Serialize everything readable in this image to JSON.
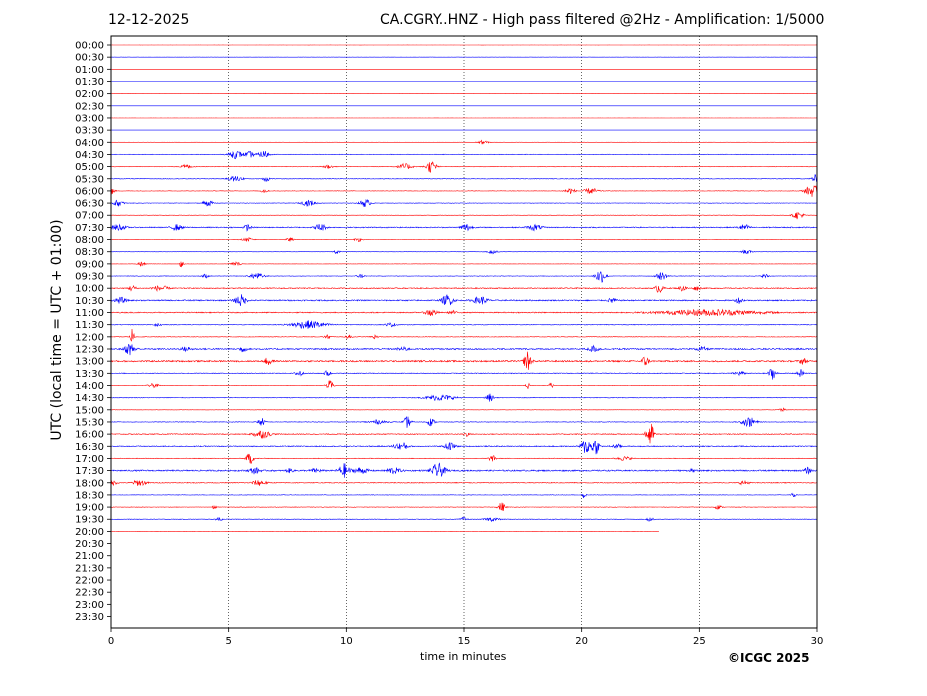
{
  "header": {
    "date": "12-12-2025",
    "title": "CA.CGRY..HNZ - High pass filtered @2Hz - Amplification: 1/5000"
  },
  "footer": {
    "copyright": "©ICGC 2025"
  },
  "chart_data": {
    "type": "line",
    "title": "CA.CGRY..HNZ - High pass filtered @2Hz - Amplification: 1/5000",
    "xlabel": "time in minutes",
    "ylabel": "UTC (local time = UTC + 01:00)",
    "xlim": [
      0,
      30
    ],
    "x_ticks": [
      0,
      5,
      10,
      15,
      20,
      25,
      30
    ],
    "x_tick_labels": [
      "0",
      "5",
      "10",
      "15",
      "20",
      "25",
      "30"
    ],
    "grid": "vertical dotted at 5-minute intervals",
    "row_labels": [
      "00:00",
      "00:30",
      "01:00",
      "01:30",
      "02:00",
      "02:30",
      "03:00",
      "03:30",
      "04:00",
      "04:30",
      "05:00",
      "05:30",
      "06:00",
      "06:30",
      "07:00",
      "07:30",
      "08:00",
      "08:30",
      "09:00",
      "09:30",
      "10:00",
      "10:30",
      "11:00",
      "11:30",
      "12:00",
      "12:30",
      "13:00",
      "13:30",
      "14:00",
      "14:30",
      "15:00",
      "15:30",
      "16:00",
      "16:30",
      "17:00",
      "17:30",
      "18:00",
      "18:30",
      "19:00",
      "19:30",
      "20:00",
      "20:30",
      "21:00",
      "21:30",
      "22:00",
      "22:30",
      "23:00",
      "23:30"
    ],
    "colors": {
      "even_rows": "#ff0000",
      "odd_rows": "#0000ff"
    },
    "data_end": {
      "row": "20:00",
      "minute": 23.3
    },
    "rows": [
      {
        "label": "00:00",
        "noise": 0.1,
        "events": []
      },
      {
        "label": "00:30",
        "noise": 0.05,
        "events": []
      },
      {
        "label": "01:00",
        "noise": 0.05,
        "events": []
      },
      {
        "label": "01:30",
        "noise": 0.05,
        "events": []
      },
      {
        "label": "02:00",
        "noise": 0.05,
        "events": []
      },
      {
        "label": "02:30",
        "noise": 0.05,
        "events": []
      },
      {
        "label": "03:00",
        "noise": 0.05,
        "events": []
      },
      {
        "label": "03:30",
        "noise": 0.05,
        "events": []
      },
      {
        "label": "04:00",
        "noise": 0.1,
        "events": [
          [
            15.8,
            2,
            0.3
          ]
        ]
      },
      {
        "label": "04:30",
        "noise": 0.4,
        "events": [
          [
            5.3,
            4,
            0.4
          ],
          [
            5.9,
            3,
            0.3
          ],
          [
            6.5,
            4,
            0.3
          ]
        ]
      },
      {
        "label": "05:00",
        "noise": 0.4,
        "events": [
          [
            3.2,
            2,
            0.3
          ],
          [
            9.2,
            2,
            0.3
          ],
          [
            12.5,
            3,
            0.4
          ],
          [
            13.6,
            6,
            0.3
          ]
        ]
      },
      {
        "label": "05:30",
        "noise": 0.4,
        "events": [
          [
            5.3,
            3,
            0.4
          ],
          [
            6.6,
            3,
            0.2
          ],
          [
            29.9,
            4,
            0.2
          ]
        ]
      },
      {
        "label": "06:00",
        "noise": 0.4,
        "events": [
          [
            0,
            4,
            0.2
          ],
          [
            6.5,
            2,
            0.2
          ],
          [
            19.5,
            3,
            0.3
          ],
          [
            20.4,
            3,
            0.4
          ],
          [
            29.8,
            6,
            0.4
          ]
        ]
      },
      {
        "label": "06:30",
        "noise": 0.4,
        "events": [
          [
            0.3,
            3,
            0.3
          ],
          [
            4.1,
            3,
            0.3
          ],
          [
            8.4,
            3,
            0.4
          ],
          [
            10.8,
            4,
            0.3
          ]
        ]
      },
      {
        "label": "07:00",
        "noise": 0.3,
        "events": [
          [
            29.2,
            4,
            0.3
          ]
        ]
      },
      {
        "label": "07:30",
        "noise": 0.8,
        "events": [
          [
            0.3,
            3,
            0.4
          ],
          [
            2.8,
            3,
            0.3
          ],
          [
            5.8,
            3,
            0.2
          ],
          [
            8.9,
            4,
            0.3
          ],
          [
            15.1,
            4,
            0.3
          ],
          [
            18.0,
            3,
            0.4
          ],
          [
            26.9,
            3,
            0.3
          ]
        ]
      },
      {
        "label": "08:00",
        "noise": 0.3,
        "events": [
          [
            5.8,
            2,
            0.3
          ],
          [
            7.6,
            2,
            0.2
          ],
          [
            10.5,
            2,
            0.2
          ]
        ]
      },
      {
        "label": "08:30",
        "noise": 0.2,
        "events": [
          [
            9.6,
            2,
            0.2
          ],
          [
            16.2,
            2,
            0.3
          ],
          [
            27.0,
            2,
            0.3
          ]
        ]
      },
      {
        "label": "09:00",
        "noise": 0.2,
        "events": [
          [
            1.3,
            3,
            0.2
          ],
          [
            3.0,
            6,
            0.1
          ],
          [
            5.3,
            2,
            0.3
          ]
        ]
      },
      {
        "label": "09:30",
        "noise": 0.4,
        "events": [
          [
            4.0,
            2,
            0.2
          ],
          [
            6.2,
            3,
            0.4
          ],
          [
            10.6,
            2,
            0.2
          ],
          [
            20.8,
            7,
            0.3
          ],
          [
            23.4,
            4,
            0.3
          ],
          [
            27.8,
            2,
            0.2
          ]
        ]
      },
      {
        "label": "10:00",
        "noise": 0.8,
        "events": [
          [
            0.9,
            3,
            0.2
          ],
          [
            2.1,
            3,
            0.4
          ],
          [
            23.3,
            5,
            0.2
          ],
          [
            24.3,
            3,
            0.2
          ],
          [
            24.9,
            2,
            0.2
          ]
        ]
      },
      {
        "label": "10:30",
        "noise": 1.0,
        "events": [
          [
            0.4,
            3,
            0.3
          ],
          [
            5.5,
            6,
            0.3
          ],
          [
            14.3,
            6,
            0.3
          ],
          [
            15.7,
            4,
            0.4
          ],
          [
            21.3,
            3,
            0.2
          ],
          [
            26.7,
            3,
            0.2
          ]
        ]
      },
      {
        "label": "11:00",
        "noise": 0.8,
        "events": [
          [
            13.6,
            4,
            0.3
          ],
          [
            14.5,
            2,
            0.2
          ],
          [
            25.5,
            3,
            2.8
          ]
        ]
      },
      {
        "label": "11:30",
        "noise": 0.5,
        "events": [
          [
            2.0,
            2,
            0.2
          ],
          [
            8.4,
            4,
            1.0
          ],
          [
            11.9,
            2,
            0.3
          ]
        ]
      },
      {
        "label": "12:00",
        "noise": 0.4,
        "events": [
          [
            0.9,
            10,
            0.1
          ],
          [
            9.2,
            2,
            0.2
          ],
          [
            10.1,
            2,
            0.2
          ],
          [
            11.2,
            2,
            0.2
          ]
        ]
      },
      {
        "label": "12:30",
        "noise": 1.1,
        "events": [
          [
            0.8,
            6,
            0.3
          ],
          [
            3.2,
            2,
            0.3
          ],
          [
            5.6,
            3,
            0.2
          ],
          [
            12.4,
            2,
            0.3
          ],
          [
            20.5,
            3,
            0.3
          ],
          [
            25.1,
            2,
            0.3
          ]
        ]
      },
      {
        "label": "13:00",
        "noise": 1.2,
        "events": [
          [
            6.7,
            5,
            0.2
          ],
          [
            17.7,
            10,
            0.2
          ],
          [
            22.7,
            5,
            0.2
          ],
          [
            29.4,
            3,
            0.2
          ]
        ]
      },
      {
        "label": "13:30",
        "noise": 0.6,
        "events": [
          [
            8.0,
            4,
            0.2
          ],
          [
            9.2,
            3,
            0.2
          ],
          [
            26.7,
            2,
            0.3
          ],
          [
            28.1,
            6,
            0.2
          ],
          [
            29.3,
            4,
            0.2
          ]
        ]
      },
      {
        "label": "14:00",
        "noise": 0.3,
        "events": [
          [
            1.8,
            2,
            0.3
          ],
          [
            9.3,
            5,
            0.2
          ],
          [
            17.7,
            4,
            0.1
          ],
          [
            18.7,
            5,
            0.1
          ]
        ]
      },
      {
        "label": "14:30",
        "noise": 0.5,
        "events": [
          [
            14.0,
            3,
            0.8
          ],
          [
            16.1,
            4,
            0.2
          ]
        ]
      },
      {
        "label": "15:00",
        "noise": 0.2,
        "events": [
          [
            28.5,
            2,
            0.2
          ]
        ]
      },
      {
        "label": "15:30",
        "noise": 0.5,
        "events": [
          [
            6.4,
            4,
            0.2
          ],
          [
            11.3,
            2,
            0.5
          ],
          [
            12.6,
            6,
            0.2
          ],
          [
            13.6,
            4,
            0.2
          ],
          [
            27.1,
            5,
            0.4
          ]
        ]
      },
      {
        "label": "16:00",
        "noise": 0.7,
        "events": [
          [
            6.4,
            4,
            0.5
          ],
          [
            15.1,
            2,
            0.2
          ],
          [
            22.9,
            14,
            0.2
          ]
        ]
      },
      {
        "label": "16:30",
        "noise": 0.8,
        "events": [
          [
            12.2,
            3,
            0.3
          ],
          [
            12.5,
            3,
            0.2
          ],
          [
            14.4,
            4,
            0.3
          ],
          [
            20.2,
            8,
            0.3
          ],
          [
            20.6,
            8,
            0.2
          ],
          [
            21.5,
            2,
            0.3
          ]
        ]
      },
      {
        "label": "17:00",
        "noise": 0.5,
        "events": [
          [
            5.9,
            6,
            0.2
          ],
          [
            16.2,
            3,
            0.2
          ],
          [
            21.8,
            2,
            0.4
          ]
        ]
      },
      {
        "label": "17:30",
        "noise": 1.1,
        "events": [
          [
            6.1,
            3,
            0.3
          ],
          [
            7.6,
            2,
            0.2
          ],
          [
            8.7,
            2,
            0.3
          ],
          [
            9.9,
            7,
            0.3
          ],
          [
            10.6,
            3,
            0.4
          ],
          [
            12.0,
            3,
            0.4
          ],
          [
            13.9,
            7,
            0.4
          ],
          [
            24.7,
            3,
            0.1
          ],
          [
            29.6,
            3,
            0.2
          ]
        ]
      },
      {
        "label": "18:00",
        "noise": 0.6,
        "events": [
          [
            0,
            3,
            0.3
          ],
          [
            1.2,
            3,
            0.4
          ],
          [
            6.3,
            3,
            0.4
          ],
          [
            26.9,
            2,
            0.3
          ]
        ]
      },
      {
        "label": "18:30",
        "noise": 0.4,
        "events": [
          [
            20.1,
            4,
            0.1
          ],
          [
            29.0,
            3,
            0.1
          ]
        ]
      },
      {
        "label": "19:00",
        "noise": 0.4,
        "events": [
          [
            4.4,
            3,
            0.1
          ],
          [
            16.6,
            5,
            0.2
          ],
          [
            25.8,
            2,
            0.2
          ]
        ]
      },
      {
        "label": "19:30",
        "noise": 0.4,
        "events": [
          [
            4.6,
            2,
            0.2
          ],
          [
            15.0,
            2,
            0.2
          ],
          [
            16.2,
            2,
            0.4
          ],
          [
            22.9,
            2,
            0.2
          ]
        ]
      },
      {
        "label": "20:00",
        "noise": 0.15,
        "events": []
      },
      {
        "label": "20:30",
        "noise": 0,
        "events": []
      },
      {
        "label": "21:00",
        "noise": 0,
        "events": []
      },
      {
        "label": "21:30",
        "noise": 0,
        "events": []
      },
      {
        "label": "22:00",
        "noise": 0,
        "events": []
      },
      {
        "label": "22:30",
        "noise": 0,
        "events": []
      },
      {
        "label": "23:00",
        "noise": 0,
        "events": []
      },
      {
        "label": "23:30",
        "noise": 0,
        "events": []
      }
    ]
  }
}
